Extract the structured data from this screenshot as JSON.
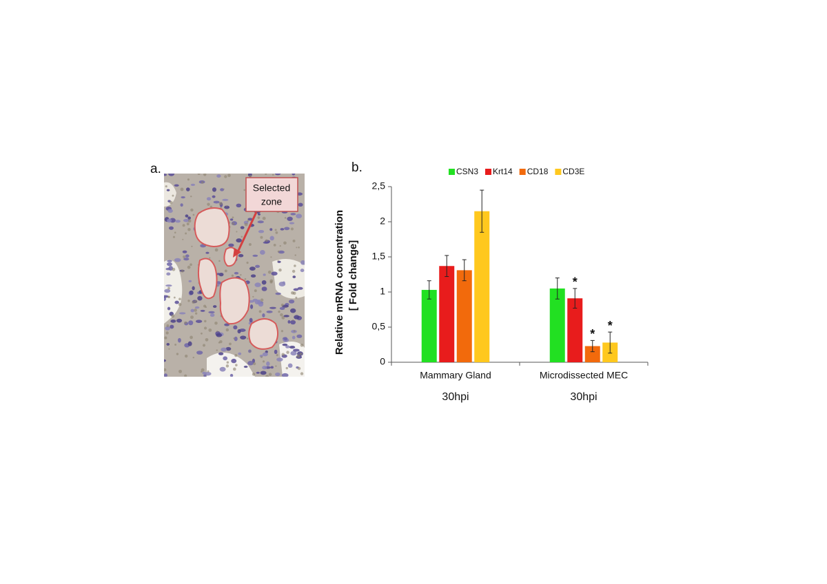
{
  "panel_a": {
    "label": "a.",
    "callout": [
      "Selected",
      "zone"
    ]
  },
  "chart_data": {
    "type": "bar",
    "panel_label": "b.",
    "y_label": [
      "Relative mRNA concentration",
      "[ Fold change]"
    ],
    "categories": [
      "Mammary Gland",
      "Microdissected MEC"
    ],
    "sublabels": [
      "30hpi",
      "30hpi"
    ],
    "series": [
      {
        "name": "CSN3",
        "color": "#22e022",
        "values": [
          1.03,
          1.05
        ],
        "errors": [
          0.13,
          0.15
        ],
        "significance": [
          null,
          null
        ]
      },
      {
        "name": "Krt14",
        "color": "#e81c1c",
        "values": [
          1.37,
          0.91
        ],
        "errors": [
          0.15,
          0.14
        ],
        "significance": [
          null,
          "*"
        ]
      },
      {
        "name": "CD18",
        "color": "#f26a0c",
        "values": [
          1.31,
          0.23
        ],
        "errors": [
          0.15,
          0.08
        ],
        "significance": [
          null,
          "*"
        ]
      },
      {
        "name": "CD3E",
        "color": "#ffc81e",
        "values": [
          2.15,
          0.28
        ],
        "errors": [
          0.3,
          0.15
        ],
        "significance": [
          null,
          "*"
        ]
      }
    ],
    "ylim": [
      0,
      2.5
    ],
    "yticks": [
      0,
      {
        "value": 0.5,
        "label": "0,5"
      },
      1,
      {
        "value": 1.5,
        "label": "1,5"
      },
      2,
      {
        "value": 2.5,
        "label": "2,5"
      }
    ],
    "legend": "top",
    "grid": false
  }
}
